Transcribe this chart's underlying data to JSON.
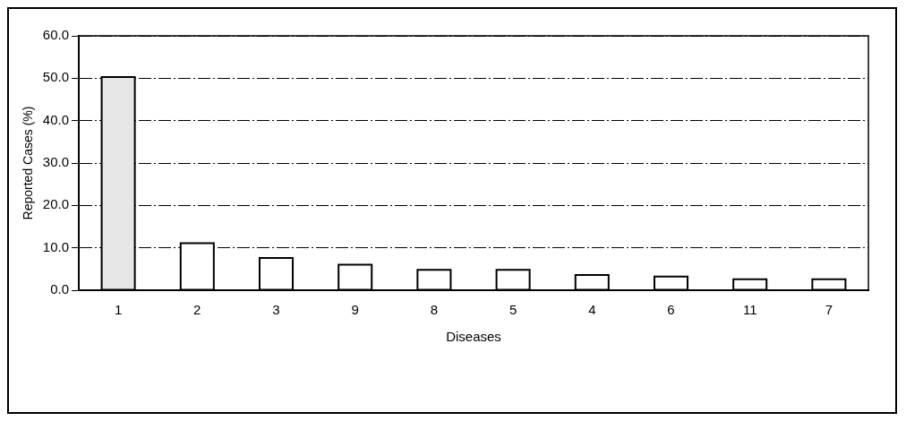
{
  "chart_data": {
    "type": "bar",
    "xlabel": "Diseases",
    "ylabel": "Reported Cases (%)",
    "categories": [
      "1",
      "2",
      "3",
      "9",
      "8",
      "5",
      "4",
      "6",
      "11",
      "7"
    ],
    "values": [
      50.3,
      11.1,
      7.6,
      6.0,
      4.8,
      4.8,
      3.6,
      3.2,
      2.6,
      2.6
    ],
    "colors": [
      "#e6e6e6",
      "#ffffff",
      "#ffffff",
      "#ffffff",
      "#ffffff",
      "#ffffff",
      "#ffffff",
      "#ffffff",
      "#ffffff",
      "#ffffff"
    ],
    "ylim": [
      0,
      60
    ],
    "yticks": [
      {
        "value": 0,
        "label": "0.0"
      },
      {
        "value": 10,
        "label": "10.0"
      },
      {
        "value": 20,
        "label": "20.0"
      },
      {
        "value": 30,
        "label": "30.0"
      },
      {
        "value": 40,
        "label": "40.0"
      },
      {
        "value": 50,
        "label": "50.0"
      },
      {
        "value": 60,
        "label": "60.0"
      }
    ],
    "grid": "y"
  }
}
